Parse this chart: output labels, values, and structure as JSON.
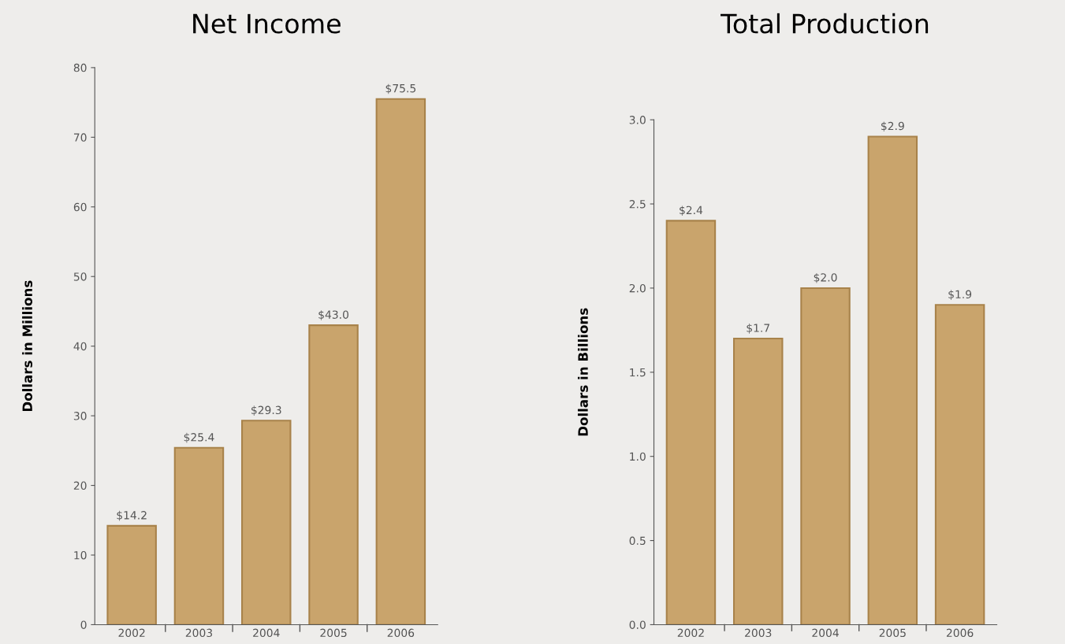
{
  "chart_data": [
    {
      "type": "bar",
      "title": "Net Income",
      "ylabel": "Dollars in Millions",
      "categories": [
        "2002",
        "2003",
        "2004",
        "2005",
        "2006"
      ],
      "values": [
        14.2,
        25.4,
        29.3,
        43.0,
        75.5
      ],
      "value_labels": [
        "$14.2",
        "$25.4",
        "$29.3",
        "$43.0",
        "$75.5"
      ],
      "color": "#c9a46c",
      "ylim": [
        0,
        80
      ],
      "yticks": [
        0,
        10,
        20,
        30,
        40,
        50,
        60,
        70,
        80
      ],
      "grid": false,
      "legend": false
    },
    {
      "type": "bar",
      "title": "Total Production",
      "ylabel": "Dollars in Billions",
      "categories": [
        "2002",
        "2003",
        "2004",
        "2005",
        "2006"
      ],
      "values": [
        2.4,
        1.7,
        2.0,
        2.9,
        1.9
      ],
      "value_labels": [
        "$2.4",
        "$1.7",
        "$2.0",
        "$2.9",
        "$1.9"
      ],
      "color": "#c9a46c",
      "ylim": [
        0,
        3.0
      ],
      "yticks": [
        {
          "value": 0,
          "label": "0.0"
        },
        {
          "value": 0.5,
          "label": "0.5"
        },
        {
          "value": 1,
          "label": "1.0"
        },
        {
          "value": 1.5,
          "label": "1.5"
        },
        {
          "value": 2,
          "label": "2.0"
        },
        {
          "value": 2.5,
          "label": "2.5"
        },
        {
          "value": 3,
          "label": "3.0"
        }
      ],
      "grid": false,
      "legend": false
    }
  ]
}
